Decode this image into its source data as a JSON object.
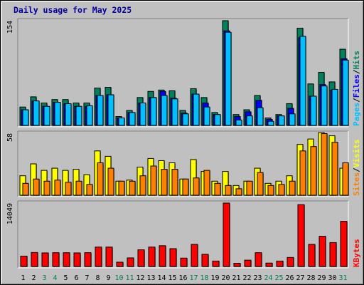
{
  "title": "Daily usage for May 2025",
  "colors": {
    "hits": "#00805c",
    "files": "#0000ff",
    "pages": "#00c0ff",
    "visits": "#ffff00",
    "sites": "#ff8000",
    "kbytes": "#ff0000",
    "weekend": "#00805c",
    "weekday": "#000000",
    "panel": "#c0c0c0"
  },
  "legend": {
    "top": [
      "Pages",
      "Files",
      "Hits"
    ],
    "middle": [
      "Sites",
      "Visits"
    ],
    "bottom": [
      "KBytes"
    ],
    "separator": "/"
  },
  "chart_data": {
    "type": "bar",
    "x": [
      "1",
      "2",
      "3",
      "4",
      "5",
      "6",
      "7",
      "8",
      "9",
      "10",
      "11",
      "12",
      "13",
      "14",
      "15",
      "16",
      "17",
      "18",
      "19",
      "20",
      "21",
      "22",
      "23",
      "24",
      "25",
      "26",
      "27",
      "28",
      "29",
      "30",
      "31"
    ],
    "weekend_days": [
      "3",
      "4",
      "10",
      "11",
      "17",
      "18",
      "24",
      "25",
      "31"
    ],
    "panels": [
      {
        "name": "top",
        "ymax": 154,
        "tick_label": "154",
        "series": [
          {
            "name": "Hits",
            "values": [
              27,
              42,
              33,
              38,
              38,
              33,
              33,
              55,
              56,
              13,
              22,
              41,
              50,
              52,
              51,
              22,
              54,
              41,
              19,
              154,
              16,
              23,
              44,
              11,
              16,
              32,
              143,
              61,
              78,
              64,
              112
            ]
          },
          {
            "name": "Files",
            "values": [
              23,
              36,
              28,
              34,
              32,
              28,
              28,
              44,
              45,
              11,
              19,
              33,
              41,
              50,
              40,
              18,
              46,
              33,
              16,
              139,
              13,
              20,
              37,
              9,
              14,
              25,
              129,
              43,
              60,
              52,
              98
            ]
          },
          {
            "name": "Pages",
            "values": [
              23,
              36,
              28,
              34,
              32,
              28,
              29,
              44,
              45,
              11,
              19,
              33,
              41,
              44,
              39,
              17,
              46,
              27,
              16,
              137,
              8,
              14,
              26,
              6,
              14,
              17,
              131,
              43,
              58,
              53,
              96
            ]
          }
        ]
      },
      {
        "name": "middle",
        "ymax": 58,
        "tick_label": "58",
        "series": [
          {
            "name": "Visits",
            "values": [
              18,
              29,
              23,
              25,
              23,
              24,
              19,
              41,
              36,
              13,
              14,
              26,
              34,
              32,
              30,
              15,
              33,
              22,
              13,
              22,
              9,
              13,
              25,
              11,
              13,
              18,
              47,
              52,
              58,
              55,
              25
            ]
          },
          {
            "name": "Sites",
            "values": [
              11,
              15,
              13,
              14,
              12,
              13,
              10,
              30,
              25,
              13,
              13,
              18,
              27,
              24,
              24,
              15,
              16,
              23,
              11,
              9,
              6,
              13,
              21,
              9,
              10,
              13,
              41,
              45,
              57,
              49,
              30
            ]
          }
        ]
      },
      {
        "name": "bottom",
        "ymax": 14049,
        "tick_label": "14049",
        "series": [
          {
            "name": "KBytes",
            "values": [
              2300,
              3100,
              3000,
              3050,
              3050,
              3000,
              3050,
              4300,
              4300,
              950,
              1900,
              3700,
              4300,
              4600,
              3950,
              1850,
              4900,
              2700,
              1200,
              14049,
              700,
              1400,
              3050,
              750,
              1200,
              2000,
              13700,
              4900,
              6700,
              5300,
              10000
            ]
          }
        ]
      }
    ]
  }
}
